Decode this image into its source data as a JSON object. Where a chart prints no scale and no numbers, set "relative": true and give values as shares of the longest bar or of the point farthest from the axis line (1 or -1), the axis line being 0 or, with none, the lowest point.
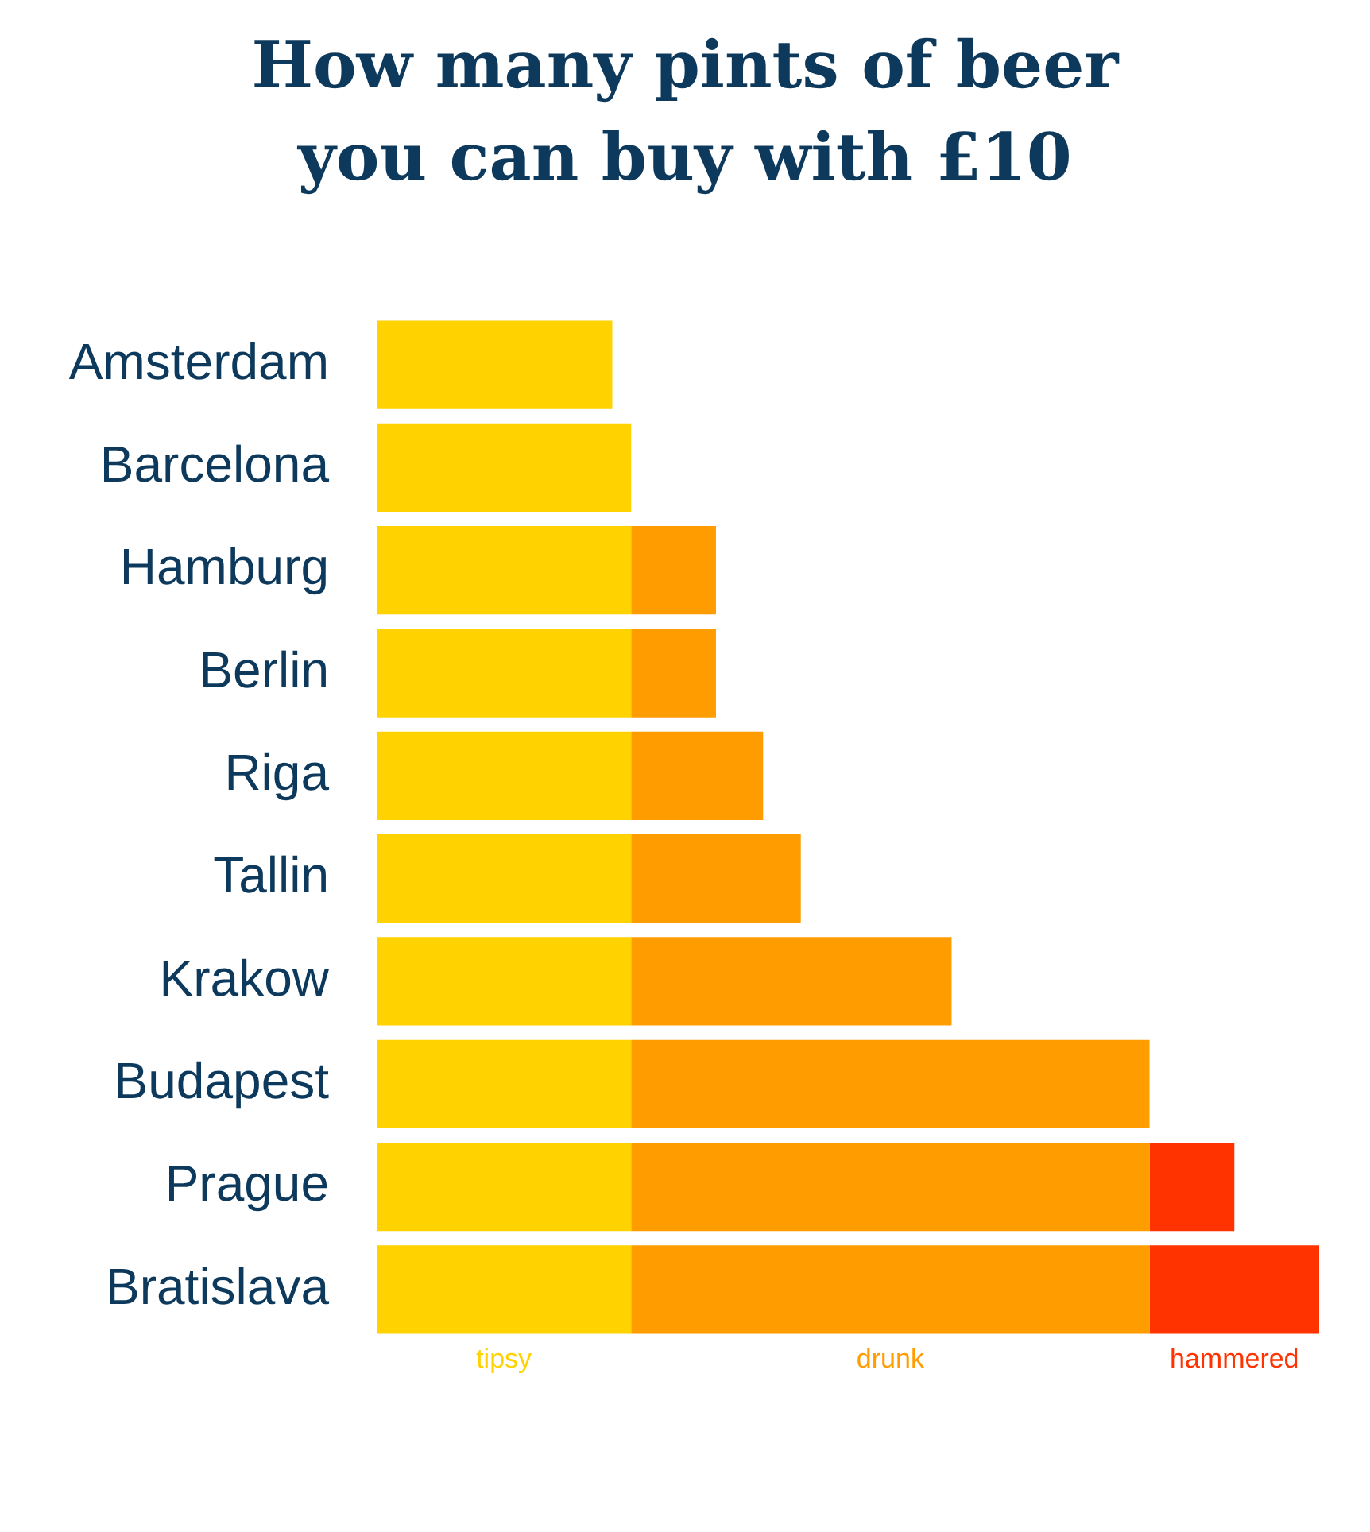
{
  "chart_data": {
    "type": "bar",
    "title": "How many pints of beer you can buy with £10",
    "orientation": "horizontal",
    "stacked": true,
    "relative": true,
    "categories": [
      "Amsterdam",
      "Barcelona",
      "Hamburg",
      "Berlin",
      "Riga",
      "Tallin",
      "Krakow",
      "Budapest",
      "Prague",
      "Bratislava"
    ],
    "series": [
      {
        "name": "tipsy",
        "color": "#ffd200",
        "values": [
          0.25,
          0.27,
          0.27,
          0.27,
          0.27,
          0.27,
          0.27,
          0.27,
          0.27,
          0.27
        ]
      },
      {
        "name": "drunk",
        "color": "#ff9c00",
        "values": [
          null,
          null,
          0.09,
          0.09,
          0.14,
          0.18,
          0.34,
          0.55,
          0.55,
          0.55
        ]
      },
      {
        "name": "hammered",
        "color": "#ff3300",
        "values": [
          null,
          null,
          null,
          null,
          null,
          null,
          null,
          null,
          0.09,
          0.18
        ]
      }
    ],
    "legend": false,
    "grid": false
  }
}
